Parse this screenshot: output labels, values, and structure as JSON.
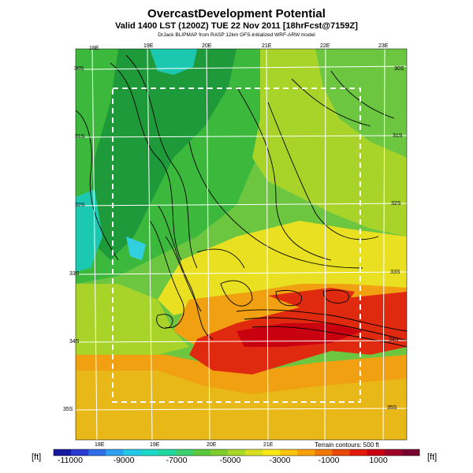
{
  "title": "OvercastDevelopment Potential",
  "subtitle": "Valid 1400 LST (1200Z) TUE 22 Nov 2011 [18hrFcst@7159Z]",
  "credit": "DrJack BLIPMAP from RASP 12km GFS-initialized WRF-ARW model",
  "terrain_note": "Terrain contours: 500 ft",
  "units": {
    "left": "[ft]",
    "right": "[ft]"
  },
  "lon_labels_top": [
    "18E",
    "19E",
    "20E",
    "21E",
    "22E",
    "23E"
  ],
  "lon_labels_bottom": [
    "18E",
    "19E",
    "20E",
    "21E"
  ],
  "lat_labels_left": [
    "30S",
    "31S",
    "32S",
    "33S",
    "34S",
    "35S"
  ],
  "lat_labels_right": [
    "30S",
    "31S",
    "32S",
    "33S",
    "34S",
    "35S"
  ],
  "colorbar": {
    "labels": [
      "-11000",
      "-9000",
      "-7000",
      "-5000",
      "-3000",
      "-1000",
      "1000"
    ],
    "colors": [
      "#1818a0",
      "#2a3cd0",
      "#2f6ee8",
      "#2ea0f0",
      "#22c8e8",
      "#1cd8c8",
      "#20d8a0",
      "#3cd070",
      "#5cc83c",
      "#80cc2c",
      "#a8d828",
      "#d8e020",
      "#f8e818",
      "#f8c410",
      "#f8a008",
      "#f07808",
      "#e84808",
      "#e01c08",
      "#c80010",
      "#a00028",
      "#780030"
    ]
  },
  "map_colors": {
    "deep_green": "#1f9a3a",
    "green": "#3cb83c",
    "light_green": "#6cc640",
    "yellow_green": "#a8d42a",
    "yellow": "#e8e020",
    "orange": "#f0a010",
    "red": "#e02a10",
    "teal": "#1cc8b0",
    "cyan": "#30d0e0"
  }
}
